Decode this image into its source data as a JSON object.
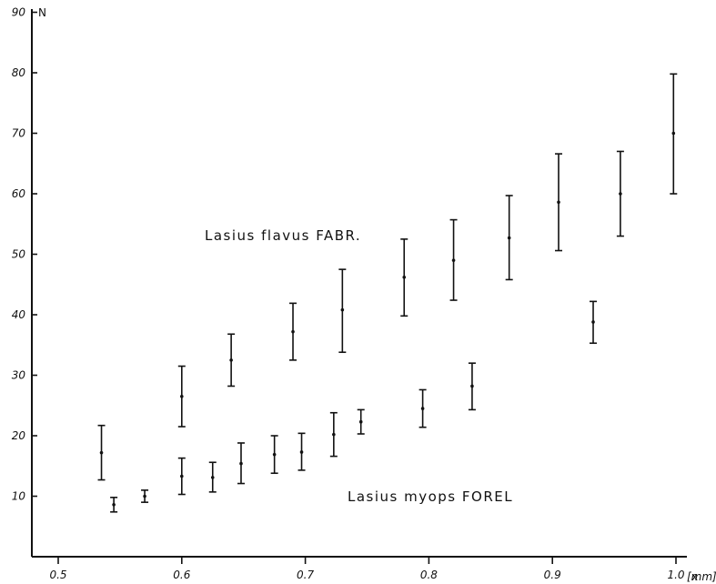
{
  "chart_data": {
    "type": "scatter",
    "title": "",
    "xlabel": "x",
    "xunit": "[mm]",
    "ylabel": "N",
    "xlim": [
      0.5,
      1.0
    ],
    "ylim": [
      0,
      90
    ],
    "x_ticks": [
      "0.5",
      "0.6",
      "0.7",
      "0.8",
      "0.9",
      "1.0"
    ],
    "y_ticks": [
      "10",
      "20",
      "30",
      "40",
      "50",
      "60",
      "70",
      "80",
      "90"
    ],
    "grid": false,
    "error_bars": true,
    "series": [
      {
        "name": "Lasius flavus FABR.",
        "points": [
          {
            "x": 0.535,
            "y": 17.2,
            "ylow": 12.7,
            "yhigh": 21.7
          },
          {
            "x": 0.6,
            "y": 26.5,
            "ylow": 21.5,
            "yhigh": 31.5
          },
          {
            "x": 0.64,
            "y": 32.5,
            "ylow": 28.2,
            "yhigh": 36.8
          },
          {
            "x": 0.69,
            "y": 37.2,
            "ylow": 32.5,
            "yhigh": 41.9
          },
          {
            "x": 0.73,
            "y": 40.8,
            "ylow": 33.8,
            "yhigh": 47.5
          },
          {
            "x": 0.78,
            "y": 46.2,
            "ylow": 39.8,
            "yhigh": 52.5
          },
          {
            "x": 0.82,
            "y": 49.0,
            "ylow": 42.4,
            "yhigh": 55.7
          },
          {
            "x": 0.865,
            "y": 52.7,
            "ylow": 45.8,
            "yhigh": 59.7
          },
          {
            "x": 0.905,
            "y": 58.6,
            "ylow": 50.6,
            "yhigh": 66.6
          },
          {
            "x": 0.955,
            "y": 60.0,
            "ylow": 53.0,
            "yhigh": 67.0
          },
          {
            "x": 0.998,
            "y": 70.0,
            "ylow": 60.0,
            "yhigh": 79.8
          }
        ]
      },
      {
        "name": "Lasius myops FOREL",
        "points": [
          {
            "x": 0.545,
            "y": 8.6,
            "ylow": 7.4,
            "yhigh": 9.8
          },
          {
            "x": 0.57,
            "y": 10.0,
            "ylow": 9.0,
            "yhigh": 11.0
          },
          {
            "x": 0.6,
            "y": 13.3,
            "ylow": 10.3,
            "yhigh": 16.3
          },
          {
            "x": 0.625,
            "y": 13.1,
            "ylow": 10.7,
            "yhigh": 15.6
          },
          {
            "x": 0.648,
            "y": 15.4,
            "ylow": 12.1,
            "yhigh": 18.8
          },
          {
            "x": 0.675,
            "y": 16.9,
            "ylow": 13.8,
            "yhigh": 20.0
          },
          {
            "x": 0.697,
            "y": 17.3,
            "ylow": 14.3,
            "yhigh": 20.4
          },
          {
            "x": 0.723,
            "y": 20.2,
            "ylow": 16.6,
            "yhigh": 23.8
          },
          {
            "x": 0.745,
            "y": 22.3,
            "ylow": 20.3,
            "yhigh": 24.3
          },
          {
            "x": 0.795,
            "y": 24.5,
            "ylow": 21.4,
            "yhigh": 27.6
          },
          {
            "x": 0.835,
            "y": 28.2,
            "ylow": 24.3,
            "yhigh": 32.0
          },
          {
            "x": 0.933,
            "y": 38.8,
            "ylow": 35.3,
            "yhigh": 42.2
          }
        ]
      }
    ]
  }
}
